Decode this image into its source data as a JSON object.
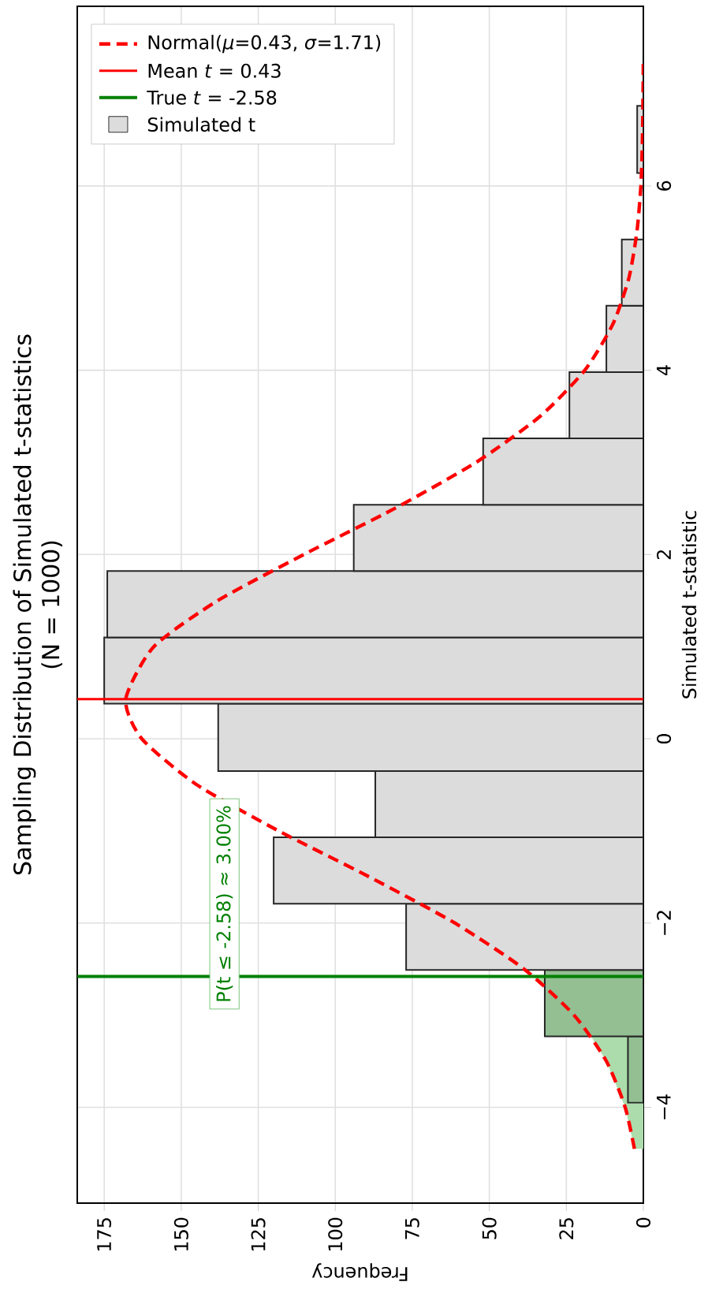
{
  "chart_data": {
    "type": "histogram",
    "orientation": "horizontal",
    "title": "Sampling Distribution of Simulated t-statistics",
    "subtitle": "(N = 1000)",
    "xlabel": "Frequency",
    "ylabel": "Simulated t-statistic",
    "bins": [
      -3.95,
      -3.23,
      -2.51,
      -1.79,
      -1.07,
      -0.35,
      0.38,
      1.1,
      1.82,
      2.54,
      3.26,
      3.98,
      4.7,
      5.42,
      6.14,
      6.87
    ],
    "series": [
      {
        "type": "area",
        "color": "#acdcac",
        "x": [
          -4.45,
          -4,
          -3.5,
          -3.25,
          -2.58
        ],
        "values": [
          2.9,
          5.9,
          12,
          16.6,
          35.7
        ]
      },
      {
        "type": "histogram",
        "name": "Simulated t",
        "values": [
          5,
          32,
          77,
          120,
          87,
          138,
          175,
          174,
          94,
          52,
          24,
          12,
          7,
          0,
          2
        ],
        "colors": [
          "#93bf93",
          "#93bf93",
          "#dcdcdc",
          "#dcdcdc",
          "#dcdcdc",
          "#dcdcdc",
          "#dcdcdc",
          "#dcdcdc",
          "#dcdcdc",
          "#dcdcdc",
          "#dcdcdc",
          "#dcdcdc",
          "#dcdcdc",
          "#dcdcdc",
          "#dcdcdc"
        ]
      },
      {
        "type": "line",
        "name": "Normal(*μ*=0.43, *σ*=1.71)",
        "color": "#ff0000",
        "line_style": "dashed",
        "x": [
          -4.45,
          -4,
          -3.5,
          -3,
          -2.5,
          -2,
          -1.5,
          -1,
          -0.5,
          0,
          0.43,
          1,
          1.5,
          2,
          2.5,
          3,
          3.5,
          4,
          4.5,
          5,
          5.5,
          6,
          6.5,
          7,
          7.36
        ],
        "values": [
          2.9,
          5.9,
          12,
          22.5,
          38.7,
          61.2,
          88.9,
          118.4,
          144.9,
          162.8,
          168,
          158.9,
          138.1,
          110.2,
          80.7,
          54.3,
          33.5,
          19,
          9.9,
          4.7,
          2.1,
          0.8,
          0.3,
          0.1,
          0
        ]
      }
    ],
    "ref_lines": [
      {
        "axis": "y",
        "value": 0.43,
        "label": "Mean *t* = 0.43",
        "color": "#ff0000"
      },
      {
        "axis": "y",
        "value": -2.58,
        "label": "True *t* = -2.58",
        "color": "#008000"
      }
    ],
    "annotations": [
      "P(t ≤ -2.58) ≈ 3.00%"
    ],
    "ylim": [
      -5.04,
      7.95
    ],
    "xlim": [
      183.75,
      0
    ],
    "yticks": [
      {
        "value": -4,
        "label": "−4"
      },
      {
        "value": -2,
        "label": "−2"
      },
      {
        "value": 0,
        "label": "0"
      },
      {
        "value": 2,
        "label": "2"
      },
      {
        "value": 4,
        "label": "4"
      },
      {
        "value": 6,
        "label": "6"
      }
    ],
    "xticks": [
      {
        "value": 0,
        "label": "0"
      },
      {
        "value": 25,
        "label": "25"
      },
      {
        "value": 50,
        "label": "50"
      },
      {
        "value": 75,
        "label": "75"
      },
      {
        "value": 100,
        "label": "100"
      },
      {
        "value": 125,
        "label": "125"
      },
      {
        "value": 150,
        "label": "150"
      },
      {
        "value": 175,
        "label": "175"
      }
    ],
    "grid": true,
    "legend": "top left"
  }
}
